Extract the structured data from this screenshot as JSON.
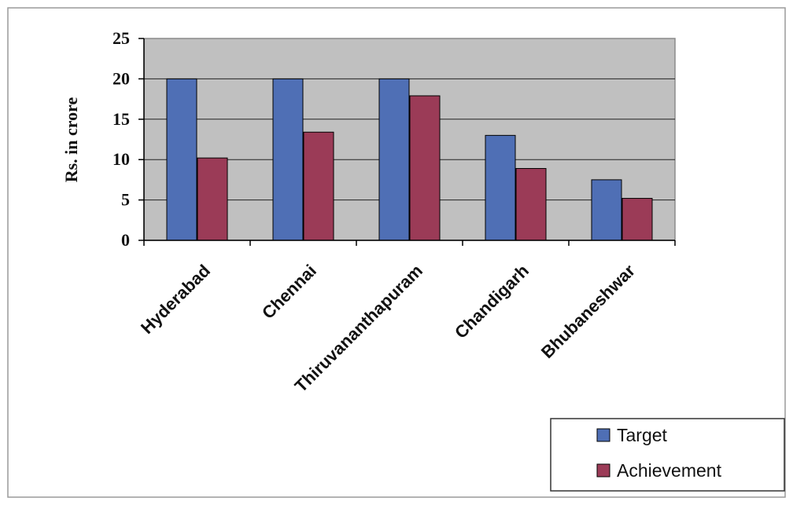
{
  "chart_data": {
    "type": "bar",
    "categories": [
      "Hyderabad",
      "Chennai",
      "Thiruvananthapuram",
      "Chandigarh",
      "Bhubaneshwar"
    ],
    "series": [
      {
        "name": "Target",
        "values": [
          20,
          20,
          20,
          13,
          7.5
        ],
        "color": "#4f6fb5"
      },
      {
        "name": "Achievement",
        "values": [
          10.2,
          13.4,
          17.9,
          8.9,
          5.2
        ],
        "color": "#9b3b57"
      }
    ],
    "ylabel": "Rs. in crore",
    "xlabel": "",
    "ylim": [
      0,
      25
    ],
    "yticks": [
      0,
      5,
      10,
      15,
      20,
      25
    ],
    "grid": true,
    "legend": "bottom-right",
    "plot_background": "#c0c0c0"
  }
}
